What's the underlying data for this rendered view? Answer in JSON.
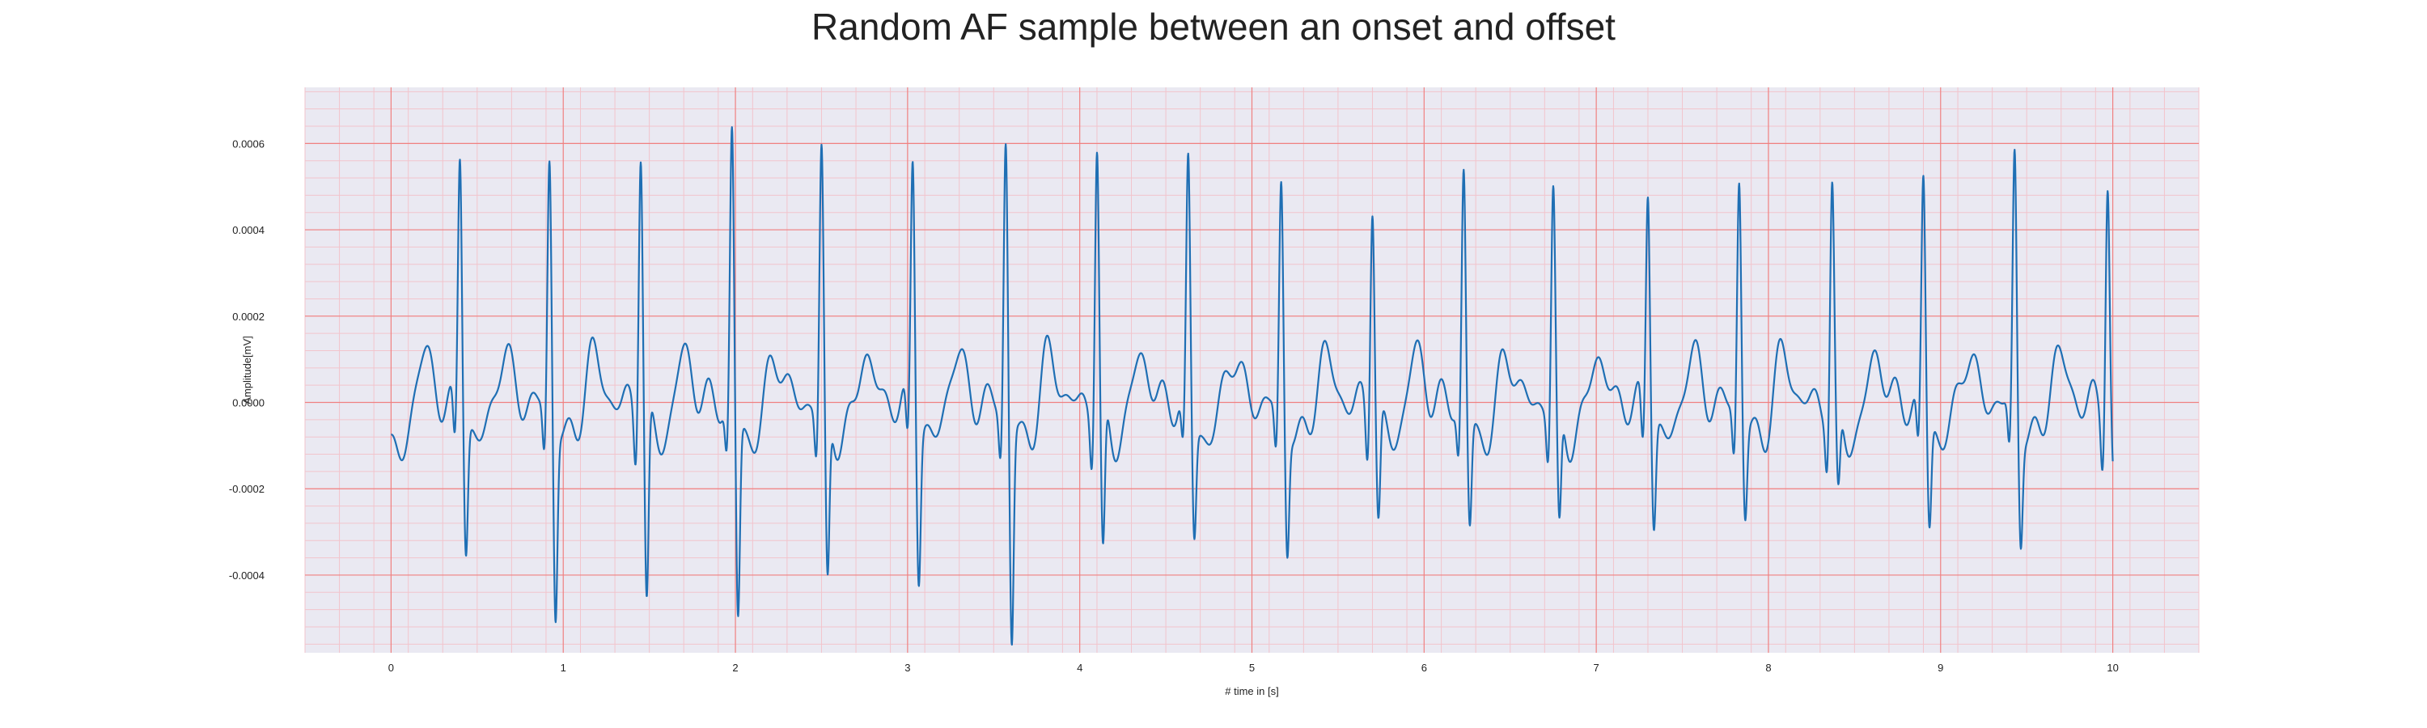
{
  "chart_data": {
    "type": "line",
    "title": "Random AF sample between an onset and offset",
    "xlabel": "# time in [s]",
    "ylabel": "Amplitude[mV]",
    "xlim": [
      -0.5,
      10.5
    ],
    "ylim": [
      -0.00058,
      0.00073
    ],
    "x_ticks": [
      0,
      1,
      2,
      3,
      4,
      5,
      6,
      7,
      8,
      9,
      10
    ],
    "x_tick_labels": [
      "0",
      "1",
      "2",
      "3",
      "4",
      "5",
      "6",
      "7",
      "8",
      "9",
      "10"
    ],
    "y_ticks": [
      -0.0004,
      -0.0002,
      0.0,
      0.0002,
      0.0004,
      0.0006
    ],
    "y_tick_labels": [
      "-0.0004",
      "-0.0002",
      "0.0000",
      "0.0002",
      "0.0004",
      "0.0006"
    ],
    "grid": true,
    "minor_grid": true,
    "colors": {
      "line": "#1f6fb4",
      "background": "#eae9f2",
      "major_grid": "#f08080",
      "minor_grid": "#f2c4cc"
    },
    "series": [
      {
        "sample_interval_s": 0.01,
        "start_s": 0.0,
        "end_s": 10.0,
        "beat_times_s": [
          0.4,
          0.92,
          1.45,
          1.98,
          2.5,
          3.03,
          3.57,
          4.1,
          4.63,
          5.17,
          5.7,
          6.23,
          6.75,
          7.3,
          7.83,
          8.37,
          8.9,
          9.43,
          9.97
        ],
        "r_peak_values": [
          0.00063,
          0.00061,
          0.00066,
          0.00067,
          0.00063,
          0.00062,
          0.00066,
          0.00065,
          0.0006,
          0.00055,
          0.00054,
          0.00058,
          0.00054,
          0.00056,
          0.00057,
          0.00055,
          0.00057,
          0.00062,
          0.00058
        ],
        "s_trough_values": [
          -0.0003,
          -0.00045,
          -0.00045,
          -0.00047,
          -0.0004,
          -0.00035,
          -0.00052,
          -0.00035,
          -0.00027,
          -0.0003,
          -0.00025,
          -0.00026,
          -0.00028,
          -0.00024,
          -0.00022,
          -0.00021,
          -0.00025,
          -0.00027,
          -0.00016
        ]
      }
    ]
  }
}
